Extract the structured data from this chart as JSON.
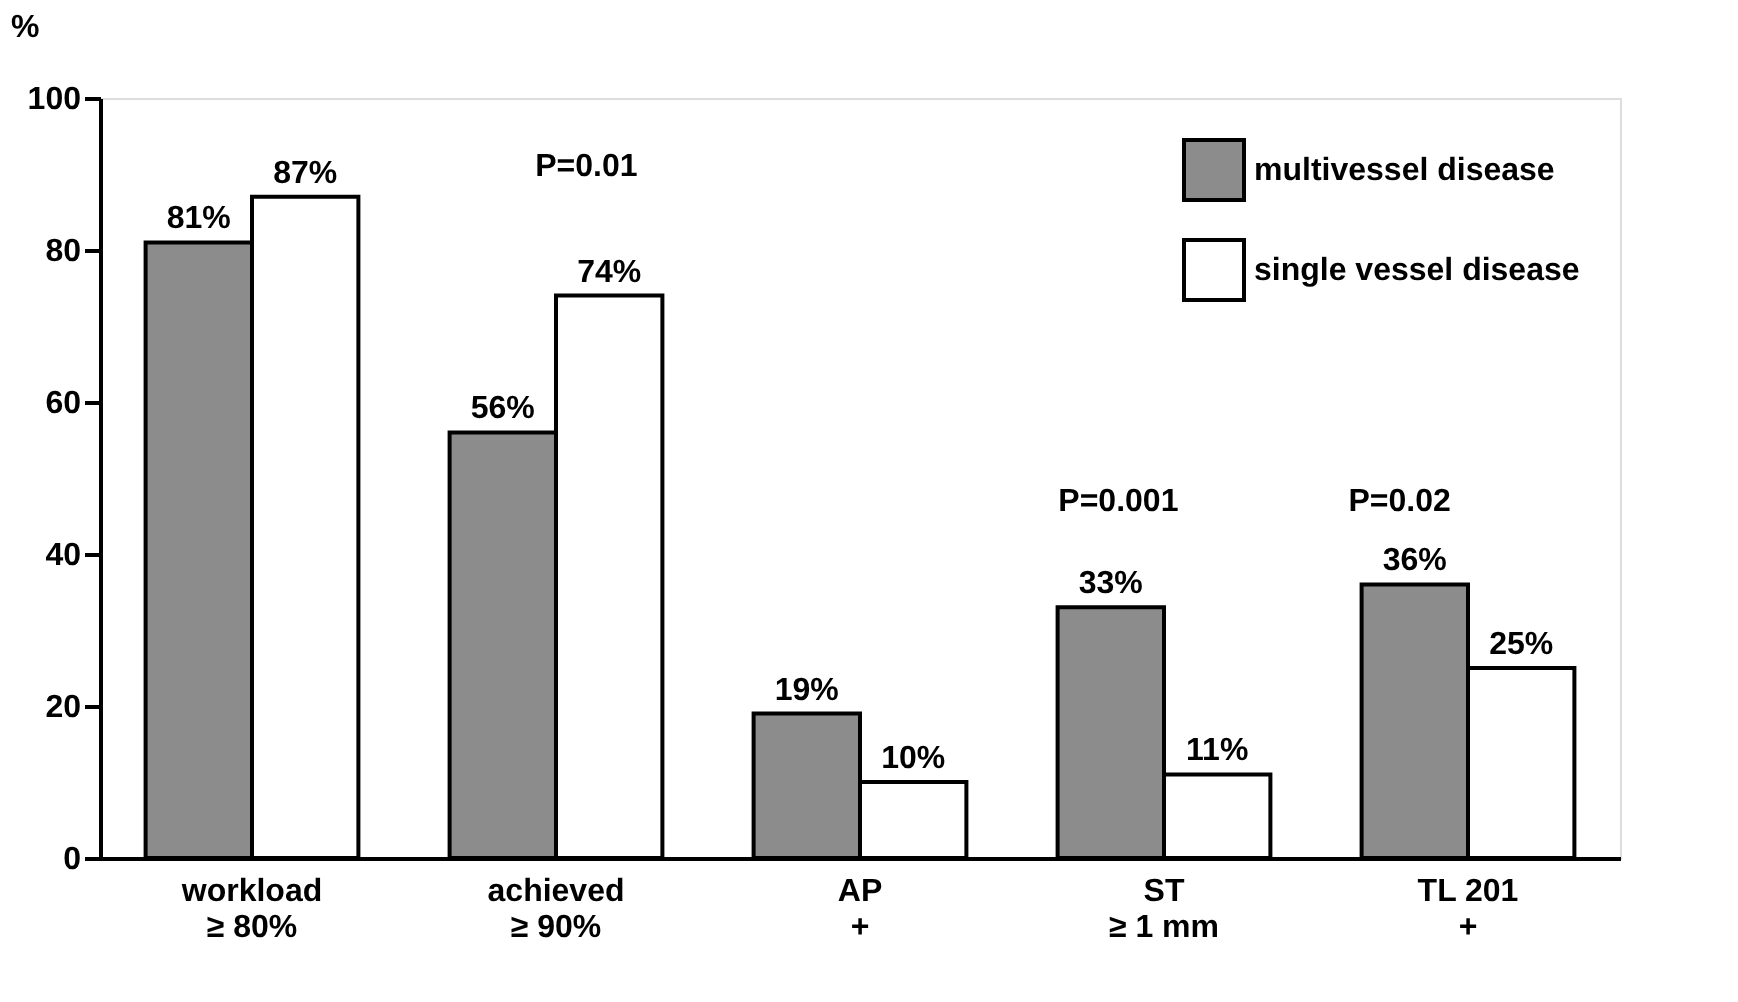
{
  "chart_data": {
    "type": "bar",
    "ylabel": "%",
    "categories": [
      "workload\n≥ 80%",
      "achieved\n≥ 90%",
      "AP\n+",
      "ST\n≥ 1 mm",
      "TL 201\n+"
    ],
    "series": [
      {
        "name": "multivessel disease",
        "color": "#8c8c8c",
        "values": [
          81,
          56,
          19,
          33,
          36
        ],
        "value_labels": [
          "81%",
          "56%",
          "19%",
          "33%",
          "36%"
        ]
      },
      {
        "name": "single vessel disease",
        "color": "#ffffff",
        "values": [
          87,
          74,
          10,
          11,
          25
        ],
        "value_labels": [
          "87%",
          "74%",
          "10%",
          "11%",
          "25%"
        ]
      }
    ],
    "ylim": [
      0,
      100
    ],
    "yticks": [
      0,
      20,
      40,
      60,
      80,
      100
    ],
    "grid": false,
    "legend": "top right",
    "annotations": [
      "P=0.01",
      "P=0.001",
      "P=0.02"
    ]
  }
}
